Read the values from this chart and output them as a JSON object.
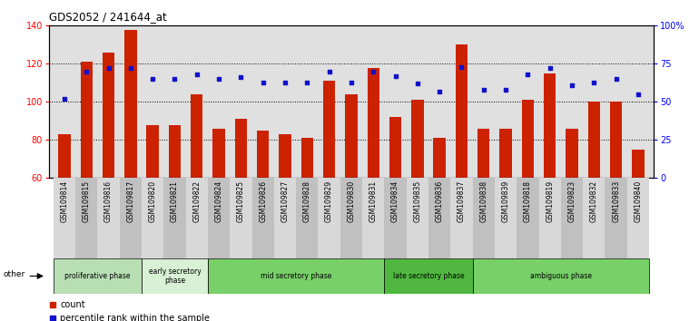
{
  "title": "GDS2052 / 241644_at",
  "samples": [
    "GSM109814",
    "GSM109815",
    "GSM109816",
    "GSM109817",
    "GSM109820",
    "GSM109821",
    "GSM109822",
    "GSM109824",
    "GSM109825",
    "GSM109826",
    "GSM109827",
    "GSM109828",
    "GSM109829",
    "GSM109830",
    "GSM109831",
    "GSM109834",
    "GSM109835",
    "GSM109836",
    "GSM109837",
    "GSM109838",
    "GSM109839",
    "GSM109818",
    "GSM109819",
    "GSM109823",
    "GSM109832",
    "GSM109833",
    "GSM109840"
  ],
  "counts": [
    83,
    121,
    126,
    138,
    88,
    88,
    104,
    86,
    91,
    85,
    83,
    81,
    111,
    104,
    118,
    92,
    101,
    81,
    130,
    86,
    86,
    101,
    115,
    86,
    100,
    100,
    75
  ],
  "percentiles": [
    52,
    70,
    72,
    72,
    65,
    65,
    68,
    65,
    66,
    63,
    63,
    63,
    70,
    63,
    70,
    67,
    62,
    57,
    73,
    58,
    58,
    68,
    72,
    61,
    63,
    65,
    55
  ],
  "phases": [
    {
      "label": "proliferative phase",
      "start": 0,
      "end": 4,
      "color": "#b8dfb4"
    },
    {
      "label": "early secretory\nphase",
      "start": 4,
      "end": 7,
      "color": "#d8f0d4"
    },
    {
      "label": "mid secretory phase",
      "start": 7,
      "end": 15,
      "color": "#78d068"
    },
    {
      "label": "late secretory phase",
      "start": 15,
      "end": 19,
      "color": "#50b840"
    },
    {
      "label": "ambiguous phase",
      "start": 19,
      "end": 27,
      "color": "#78d068"
    }
  ],
  "ylim_left": [
    60,
    140
  ],
  "ylim_right": [
    0,
    100
  ],
  "yticks_left": [
    60,
    80,
    100,
    120,
    140
  ],
  "yticks_right": [
    0,
    25,
    50,
    75,
    100
  ],
  "bar_color": "#cc2200",
  "dot_color": "#1111cc",
  "plot_bg": "#e0e0e0",
  "tick_bg_even": "#d8d8d8",
  "tick_bg_odd": "#c0c0c0"
}
